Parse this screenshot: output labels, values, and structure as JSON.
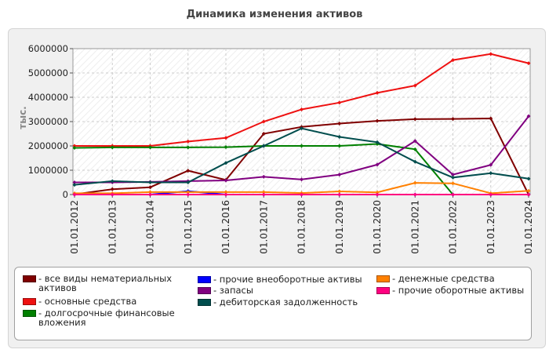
{
  "title": "Динамика изменения активов",
  "chart_data": {
    "type": "line",
    "title": "Динамика изменения активов",
    "ylabel": "тыс.",
    "xlabel": "",
    "ylim": [
      0,
      6000000
    ],
    "yticks": [
      0,
      1000000,
      2000000,
      3000000,
      4000000,
      5000000,
      6000000
    ],
    "grid": true,
    "legend_position": "bottom",
    "categories": [
      "01.01.2012",
      "01.01.2013",
      "01.01.2014",
      "01.01.2015",
      "01.01.2016",
      "01.01.2017",
      "01.01.2018",
      "01.01.2019",
      "01.01.2020",
      "01.01.2021",
      "01.01.2022",
      "01.01.2023",
      "01.01.2024"
    ],
    "series": [
      {
        "name": "все виды нематериальных активов",
        "color": "#800000",
        "values": [
          10000,
          220000,
          300000,
          980000,
          600000,
          2500000,
          2780000,
          2920000,
          3030000,
          3100000,
          3110000,
          3130000,
          0
        ]
      },
      {
        "name": "основные средства",
        "color": "#ee1111",
        "values": [
          2000000,
          2000000,
          2000000,
          2180000,
          2330000,
          3000000,
          3500000,
          3780000,
          4180000,
          4480000,
          5530000,
          5780000,
          5400000
        ]
      },
      {
        "name": "долгосрочные финансовые вложения",
        "color": "#008000",
        "values": [
          1920000,
          1940000,
          1940000,
          1940000,
          1950000,
          2000000,
          2000000,
          2000000,
          2080000,
          1860000,
          0,
          0,
          0
        ]
      },
      {
        "name": "прочие внеоборотные активы",
        "color": "#0000ff",
        "values": [
          0,
          0,
          0,
          140000,
          0,
          0,
          0,
          0,
          0,
          0,
          0,
          0,
          0
        ]
      },
      {
        "name": "запасы",
        "color": "#800080",
        "values": [
          500000,
          500000,
          520000,
          550000,
          580000,
          730000,
          620000,
          820000,
          1230000,
          2200000,
          820000,
          1220000,
          3220000
        ]
      },
      {
        "name": "дебиторская задолженность",
        "color": "#004d4d",
        "values": [
          400000,
          550000,
          500000,
          500000,
          1300000,
          2000000,
          2720000,
          2370000,
          2150000,
          1350000,
          700000,
          880000,
          650000
        ]
      },
      {
        "name": "денежные средства",
        "color": "#ff8000",
        "values": [
          50000,
          50000,
          100000,
          100000,
          100000,
          100000,
          60000,
          130000,
          90000,
          480000,
          460000,
          50000,
          150000
        ]
      },
      {
        "name": "прочие оборотные активы",
        "color": "#ff0080",
        "values": [
          0,
          0,
          0,
          0,
          0,
          0,
          0,
          0,
          0,
          0,
          0,
          0,
          0
        ]
      }
    ]
  }
}
